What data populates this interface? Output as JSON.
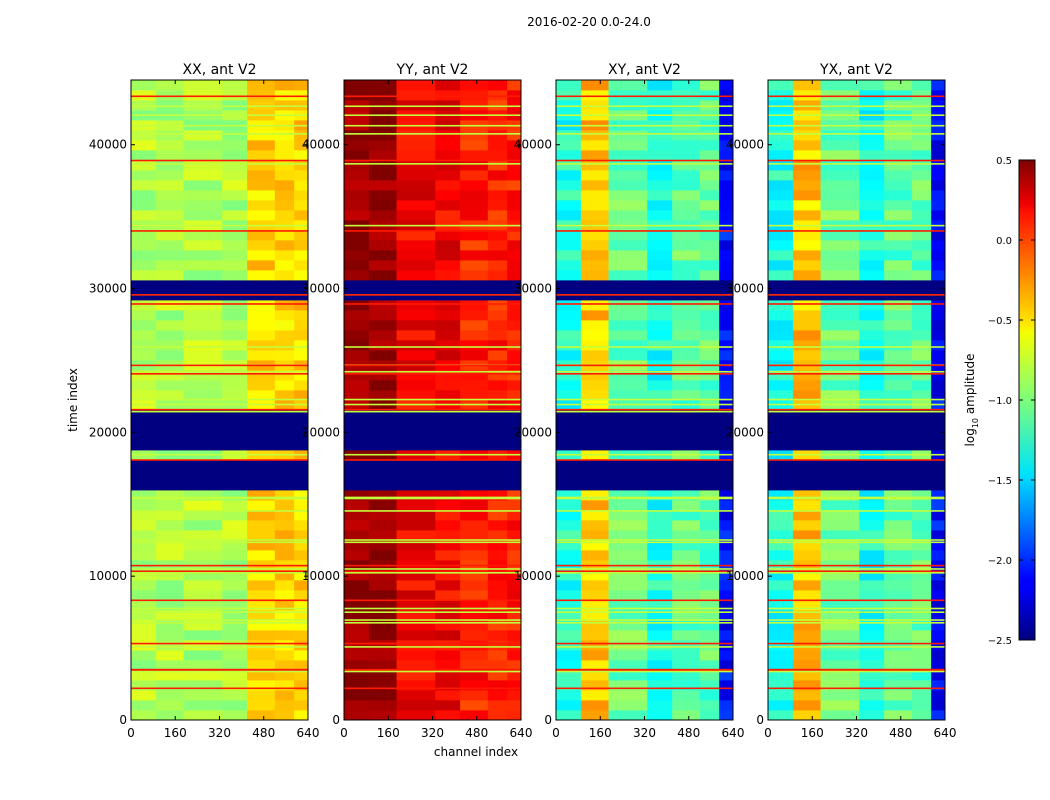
{
  "figure": {
    "suptitle": "2016-02-20 0.0-24.0"
  },
  "chart_data": {
    "type": "heatmap",
    "title": "2016-02-20 0.0-24.0",
    "xlabel": "channel index",
    "ylabel": "time index",
    "xlim": [
      0,
      640
    ],
    "ylim": [
      0,
      44500
    ],
    "xticks": [
      "0",
      "160",
      "320",
      "480",
      "640"
    ],
    "yticks": [
      "0",
      "10000",
      "20000",
      "30000",
      "40000"
    ],
    "xtick_values": [
      0,
      160,
      320,
      480,
      640
    ],
    "ytick_values": [
      0,
      10000,
      20000,
      30000,
      40000
    ],
    "colorbar": {
      "label": "log10 amplitude",
      "label_main": "log",
      "label_sub": "10",
      "label_rest": " amplitude",
      "range": [
        -2.5,
        0.5
      ],
      "colormap": "jet",
      "ticks": [
        "0.5",
        "0.0",
        "−0.5",
        "−1.0",
        "−1.5",
        "−2.0",
        "−2.5"
      ],
      "tick_values": [
        0.5,
        0.0,
        -0.5,
        -1.0,
        -1.5,
        -2.0,
        -2.5
      ]
    },
    "panels": [
      {
        "title": "XX, ant V2",
        "polarization": "XX",
        "antenna": "V2",
        "base_level": -0.85
      },
      {
        "title": "YY, ant V2",
        "polarization": "YY",
        "antenna": "V2",
        "base_level": 0.15
      },
      {
        "title": "XY, ant V2",
        "polarization": "XY",
        "antenna": "V2",
        "base_level": -1.3
      },
      {
        "title": "YX, ant V2",
        "polarization": "YX",
        "antenna": "V2",
        "base_level": -1.3
      }
    ],
    "flagged_time_ranges": [
      [
        16000,
        18000
      ],
      [
        18800,
        21300
      ],
      [
        29700,
        30200
      ]
    ]
  }
}
